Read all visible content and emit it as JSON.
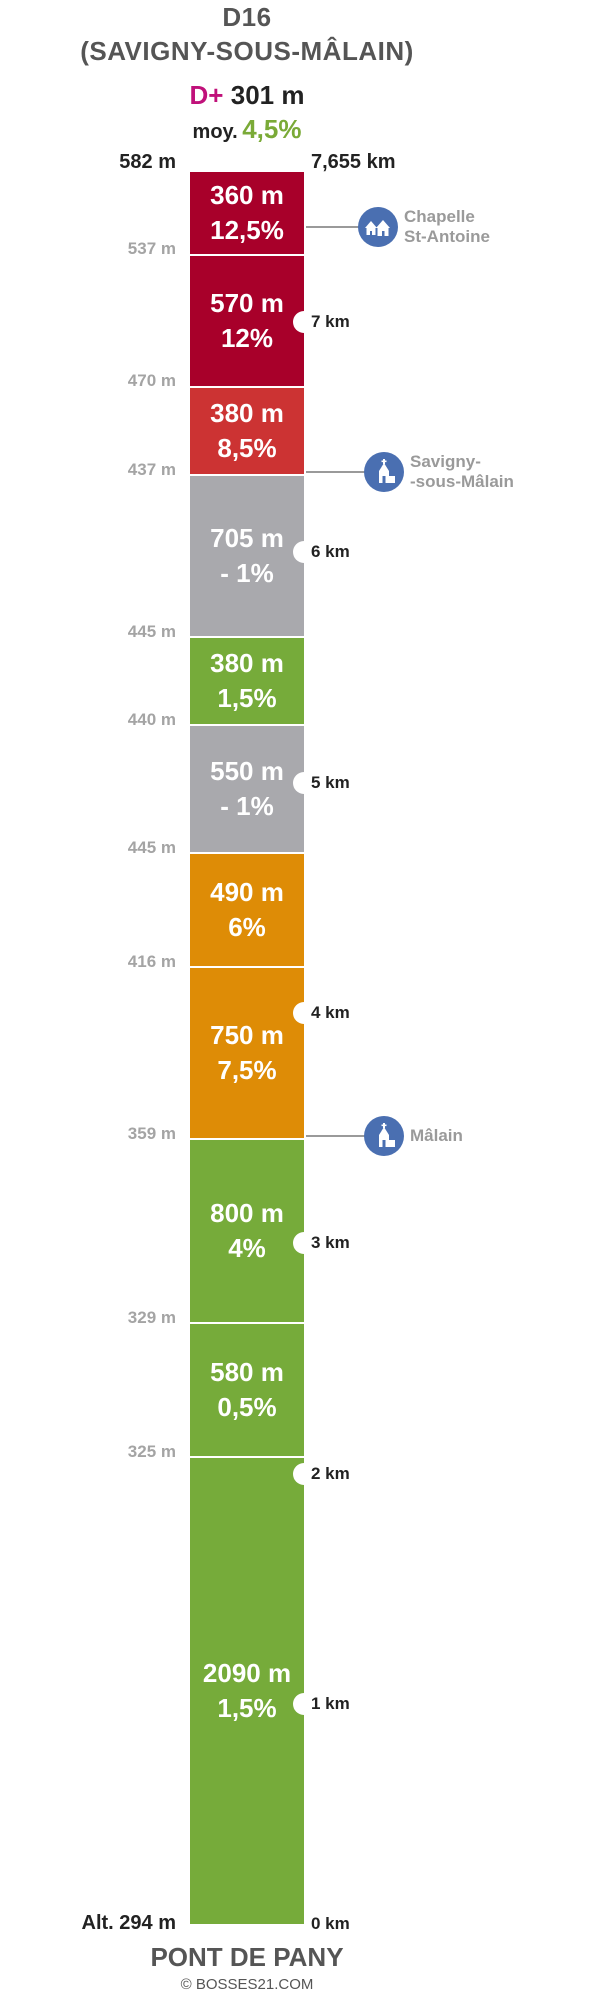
{
  "header": {
    "road": "D16",
    "destination": "(SAVIGNY-SOUS-MÂLAIN)",
    "dplus_prefix": "D+",
    "dplus_value": "301 m",
    "average_prefix": "moy.",
    "average_value": "4,5%"
  },
  "top": {
    "altitude": "582 m",
    "distance": "7,655 km"
  },
  "bottom": {
    "altitude": "Alt. 294 m",
    "distance": "0 km",
    "start_name": "PONT DE PANY"
  },
  "credit": "© BOSSES21.COM",
  "colors": {
    "dark_red": "#a8002a",
    "red": "#cc3333",
    "grey": "#a9a9ad",
    "green": "#76ab3a",
    "orange": "#de8c06",
    "accent_pink": "#c0117a",
    "poi_blue": "#4a6fb1"
  },
  "segments": [
    {
      "length": "360 m",
      "grade": "12,5%",
      "color": "#a8002a"
    },
    {
      "length": "570 m",
      "grade": "12%",
      "color": "#a8002a"
    },
    {
      "length": "380 m",
      "grade": "8,5%",
      "color": "#cc3333"
    },
    {
      "length": "705 m",
      "grade": "- 1%",
      "color": "#a9a9ad"
    },
    {
      "length": "380 m",
      "grade": "1,5%",
      "color": "#76ab3a"
    },
    {
      "length": "550 m",
      "grade": "- 1%",
      "color": "#a9a9ad"
    },
    {
      "length": "490 m",
      "grade": "6%",
      "color": "#de8c06"
    },
    {
      "length": "750 m",
      "grade": "7,5%",
      "color": "#de8c06"
    },
    {
      "length": "800 m",
      "grade": "4%",
      "color": "#76ab3a"
    },
    {
      "length": "580 m",
      "grade": "0,5%",
      "color": "#76ab3a"
    },
    {
      "length": "2090 m",
      "grade": "1,5%",
      "color": "#76ab3a"
    }
  ],
  "altitudes": [
    "537 m",
    "470 m",
    "437 m",
    "445 m",
    "440 m",
    "445 m",
    "416 m",
    "359 m",
    "329 m",
    "325 m"
  ],
  "km_marks": [
    "7 km",
    "6 km",
    "5 km",
    "4 km",
    "3 km",
    "2 km",
    "1 km"
  ],
  "pois": [
    {
      "line1": "Chapelle",
      "line2": "St-Antoine",
      "icon": "houses-icon"
    },
    {
      "line1": "Savigny-",
      "line2": "-sous-Mâlain",
      "icon": "church-icon"
    },
    {
      "line1": "Mâlain",
      "line2": "",
      "icon": "church-icon"
    }
  ]
}
